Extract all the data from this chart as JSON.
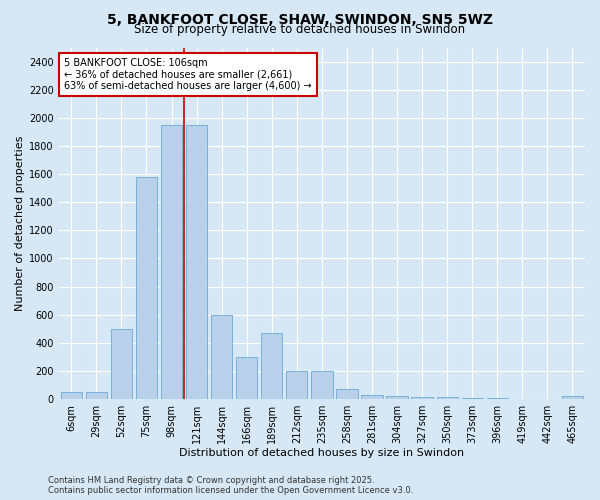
{
  "title_line1": "5, BANKFOOT CLOSE, SHAW, SWINDON, SN5 5WZ",
  "title_line2": "Size of property relative to detached houses in Swindon",
  "xlabel": "Distribution of detached houses by size in Swindon",
  "ylabel": "Number of detached properties",
  "annotation_title": "5 BANKFOOT CLOSE: 106sqm",
  "annotation_line2": "← 36% of detached houses are smaller (2,661)",
  "annotation_line3": "63% of semi-detached houses are larger (4,600) →",
  "footer_line1": "Contains HM Land Registry data © Crown copyright and database right 2025.",
  "footer_line2": "Contains public sector information licensed under the Open Government Licence v3.0.",
  "categories": [
    "6sqm",
    "29sqm",
    "52sqm",
    "75sqm",
    "98sqm",
    "121sqm",
    "144sqm",
    "166sqm",
    "189sqm",
    "212sqm",
    "235sqm",
    "258sqm",
    "281sqm",
    "304sqm",
    "327sqm",
    "350sqm",
    "373sqm",
    "396sqm",
    "419sqm",
    "442sqm",
    "465sqm"
  ],
  "bar_values": [
    50,
    50,
    500,
    1580,
    1950,
    1950,
    600,
    300,
    470,
    200,
    200,
    75,
    30,
    20,
    15,
    12,
    8,
    5,
    3,
    2,
    20
  ],
  "bar_color": "#b8d0ea",
  "bar_edge_color": "#6aaad4",
  "background_color": "#d6e8f5",
  "plot_bg_color": "#d6e8f5",
  "red_line_index": 4.5,
  "ylim": [
    0,
    2500
  ],
  "yticks": [
    0,
    200,
    400,
    600,
    800,
    1000,
    1200,
    1400,
    1600,
    1800,
    2000,
    2200,
    2400
  ],
  "grid_color": "#ffffff",
  "red_line_color": "#cc0000",
  "annotation_box_color": "#cc0000",
  "title_fontsize": 10,
  "subtitle_fontsize": 8.5,
  "axis_label_fontsize": 8,
  "tick_fontsize": 7,
  "annotation_fontsize": 7,
  "footer_fontsize": 6
}
